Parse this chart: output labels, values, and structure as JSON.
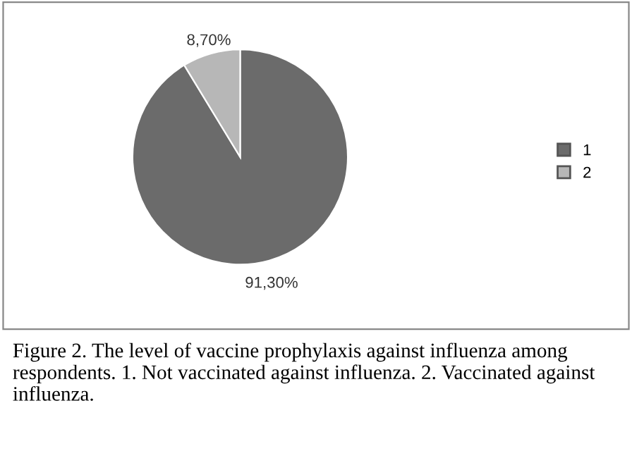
{
  "chart_data": {
    "type": "pie",
    "categories": [
      "1",
      "2"
    ],
    "values": [
      91.3,
      8.7
    ],
    "colors": [
      "#6b6b6b",
      "#b7b7b7"
    ],
    "value_labels": [
      "91,30%",
      "8,70%"
    ],
    "legend": "right",
    "annotations": [
      "Figure 2. The level of vaccine prophylaxis against influenza among respondents. 1. Not vaccinated against influenza. 2. Vaccinated against influenza."
    ]
  }
}
